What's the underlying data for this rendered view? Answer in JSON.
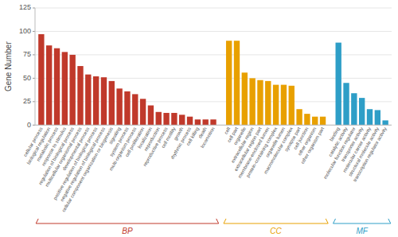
{
  "chart_data": {
    "type": "bar",
    "ylabel": "Gene Number",
    "ylim": [
      0,
      125
    ],
    "yticks": [
      0,
      25,
      50,
      75,
      100,
      125
    ],
    "grid": true,
    "series": [
      {
        "name": "BP",
        "color": "#C0392B",
        "categories": [
          "cellular process",
          "biological regulation",
          "metabolic process",
          "response to stimulus",
          "regulation of biological process",
          "multicellular organismal process",
          "developmental process",
          "positive regulation of biological process",
          "negative regulation of biological process",
          "cellular component organization or biogenesis",
          "signaling",
          "system process",
          "multi-organism process",
          "cell proliferation",
          "localization",
          "reproduction",
          "reproductive process",
          "cell motility",
          "growth",
          "rhythmic process",
          "cell killing",
          "death",
          "locomotion"
        ],
        "values": [
          97,
          85,
          82,
          78,
          75,
          63,
          54,
          52,
          51,
          47,
          39,
          36,
          33,
          28,
          21,
          14,
          13,
          13,
          11,
          9,
          6,
          6,
          6
        ]
      },
      {
        "name": "CC",
        "color": "#E8A000",
        "categories": [
          "cell",
          "cell part",
          "organelle",
          "extracellular region",
          "extracellular region part",
          "membrane-enclosed lumen",
          "protein-containing complex",
          "organelle lumen",
          "macromolecular complex",
          "synapse part",
          "cell junction",
          "other organism",
          "other organism part"
        ],
        "values": [
          90,
          90,
          56,
          50,
          48,
          47,
          43,
          43,
          42,
          17,
          12,
          9,
          9
        ]
      },
      {
        "name": "MF",
        "color": "#2E9EC7",
        "categories": [
          "binding",
          "catalytic activity",
          "molecular function regulator",
          "transporter activity",
          "molecular carrier activity",
          "structural molecule activity",
          "transcription regulator activity"
        ],
        "values": [
          88,
          45,
          34,
          29,
          17,
          16,
          5
        ]
      }
    ]
  }
}
